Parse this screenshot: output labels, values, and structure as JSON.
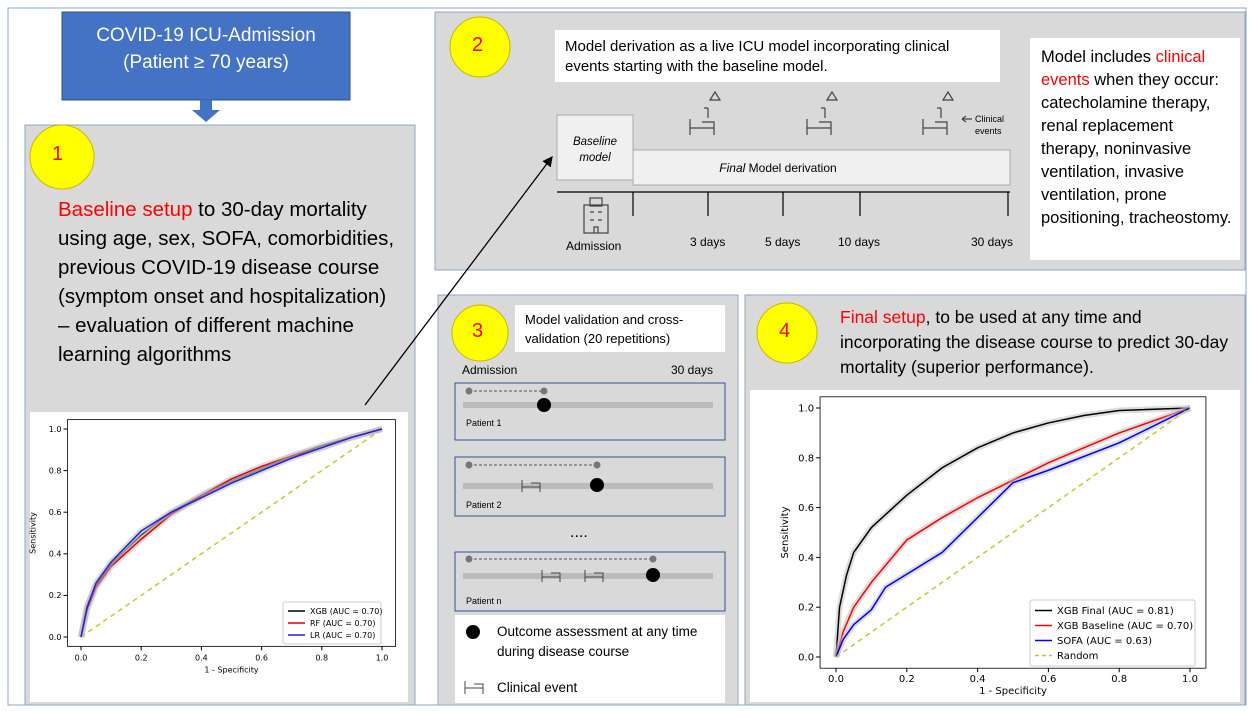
{
  "header": {
    "title": "COVID-19 ICU-Admission",
    "subtitle": "(Patient ≥ 70 years)"
  },
  "panel1": {
    "number": "1",
    "highlight": "Baseline setup",
    "text": " to 30-day mortality using age, sex, SOFA, comorbidities, previous COVID-19 disease course (symptom onset and hospitalization) – evaluation of different machine learning algorithms",
    "chart": {
      "type": "line",
      "xlabel": "1 - Specificity",
      "ylabel": "Sensitivity",
      "xlim": [
        0,
        1
      ],
      "ylim": [
        0,
        1
      ],
      "xticks": [
        {
          "value": 0,
          "label": "0.0"
        },
        {
          "value": 0.2,
          "label": "0.2"
        },
        {
          "value": 0.4,
          "label": "0.4"
        },
        {
          "value": 0.6,
          "label": "0.6"
        },
        {
          "value": 0.8,
          "label": "0.8"
        },
        {
          "value": 1,
          "label": "1.0"
        }
      ],
      "yticks": [
        {
          "value": 0,
          "label": "0.0"
        },
        {
          "value": 0.2,
          "label": "0.2"
        },
        {
          "value": 0.4,
          "label": "0.4"
        },
        {
          "value": 0.6,
          "label": "0.6"
        },
        {
          "value": 0.8,
          "label": "0.8"
        },
        {
          "value": 1,
          "label": "1.0"
        }
      ],
      "series": [
        {
          "name": "XGB (AUC = 0.70)",
          "color": "#000000",
          "x": [
            0,
            0.02,
            0.05,
            0.1,
            0.2,
            0.3,
            0.4,
            0.5,
            0.6,
            0.7,
            0.8,
            0.9,
            1
          ],
          "values": [
            0,
            0.15,
            0.25,
            0.35,
            0.49,
            0.6,
            0.68,
            0.75,
            0.81,
            0.87,
            0.92,
            0.96,
            1
          ]
        },
        {
          "name": "RF (AUC = 0.70)",
          "color": "#e00000",
          "x": [
            0,
            0.02,
            0.05,
            0.1,
            0.2,
            0.3,
            0.4,
            0.5,
            0.6,
            0.7,
            0.8,
            0.9,
            1
          ],
          "values": [
            0,
            0.13,
            0.24,
            0.34,
            0.47,
            0.59,
            0.68,
            0.76,
            0.82,
            0.87,
            0.91,
            0.96,
            1
          ]
        },
        {
          "name": "LR (AUC = 0.70)",
          "color": "#2020e0",
          "x": [
            0,
            0.02,
            0.05,
            0.1,
            0.2,
            0.3,
            0.4,
            0.5,
            0.6,
            0.7,
            0.8,
            0.9,
            1
          ],
          "values": [
            0,
            0.14,
            0.26,
            0.36,
            0.51,
            0.6,
            0.67,
            0.74,
            0.8,
            0.86,
            0.91,
            0.96,
            1
          ]
        }
      ]
    }
  },
  "panel2": {
    "number": "2",
    "description": "Model derivation as a live ICU model incorporating clinical events starting with the baseline model.",
    "side_intro": "Model includes ",
    "side_highlight": "clinical events",
    "side_text": " when they occur: catecholamine therapy, renal replacement therapy, noninvasive ventilation, invasive ventilation, prone positioning, tracheostomy.",
    "baseline": "Baseline model",
    "final_italic": "Final",
    "final_rest": " Model derivation",
    "events_label": "Clinical events",
    "timeline": [
      "Admission",
      "3 days",
      "5 days",
      "10 days",
      "30 days"
    ]
  },
  "panel3": {
    "number": "3",
    "description": "Model validation and cross-validation (20 repetitions)",
    "start": "Admission",
    "end": "30 days",
    "patients": [
      "Patient 1",
      "Patient 2",
      "Patient n"
    ],
    "ellipsis": "....",
    "legend_outcome": "Outcome assessment at any time during disease course",
    "legend_event": "Clinical event"
  },
  "panel4": {
    "number": "4",
    "highlight": "Final setup",
    "text": ", to be used at any time and incorporating the disease course to predict 30-day mortality (superior performance).",
    "chart": {
      "type": "line",
      "xlabel": "1 - Specificity",
      "ylabel": "Sensitivity",
      "xlim": [
        0,
        1
      ],
      "ylim": [
        0,
        1
      ],
      "xticks": [
        {
          "value": 0,
          "label": "0.0"
        },
        {
          "value": 0.2,
          "label": "0.2"
        },
        {
          "value": 0.4,
          "label": "0.4"
        },
        {
          "value": 0.6,
          "label": "0.6"
        },
        {
          "value": 0.8,
          "label": "0.8"
        },
        {
          "value": 1,
          "label": "1.0"
        }
      ],
      "yticks": [
        {
          "value": 0,
          "label": "0.0"
        },
        {
          "value": 0.2,
          "label": "0.2"
        },
        {
          "value": 0.4,
          "label": "0.4"
        },
        {
          "value": 0.6,
          "label": "0.6"
        },
        {
          "value": 0.8,
          "label": "0.8"
        },
        {
          "value": 1,
          "label": "1.0"
        }
      ],
      "series": [
        {
          "name": "XGB Final (AUC = 0.81)",
          "color": "#000000",
          "x": [
            0,
            0.01,
            0.03,
            0.05,
            0.1,
            0.2,
            0.3,
            0.4,
            0.5,
            0.6,
            0.7,
            0.8,
            1
          ],
          "values": [
            0,
            0.2,
            0.33,
            0.42,
            0.52,
            0.65,
            0.76,
            0.84,
            0.9,
            0.94,
            0.97,
            0.99,
            1
          ]
        },
        {
          "name": "XGB Baseline (AUC = 0.70)",
          "color": "#ff0000",
          "x": [
            0,
            0.02,
            0.05,
            0.1,
            0.2,
            0.3,
            0.4,
            0.5,
            0.6,
            0.7,
            0.8,
            0.9,
            1
          ],
          "values": [
            0,
            0.1,
            0.2,
            0.3,
            0.47,
            0.56,
            0.64,
            0.71,
            0.78,
            0.84,
            0.9,
            0.95,
            1
          ]
        },
        {
          "name": "SOFA (AUC = 0.63)",
          "color": "#0000ff",
          "x": [
            0,
            0.02,
            0.05,
            0.1,
            0.14,
            0.3,
            0.5,
            0.6,
            0.8,
            0.9,
            1
          ],
          "values": [
            0,
            0.07,
            0.13,
            0.19,
            0.28,
            0.42,
            0.7,
            0.75,
            0.86,
            0.93,
            1
          ]
        },
        {
          "name": "Random",
          "color": "#c8c832",
          "dashed": true,
          "x": [
            0,
            1
          ],
          "values": [
            0,
            1
          ]
        }
      ]
    }
  }
}
